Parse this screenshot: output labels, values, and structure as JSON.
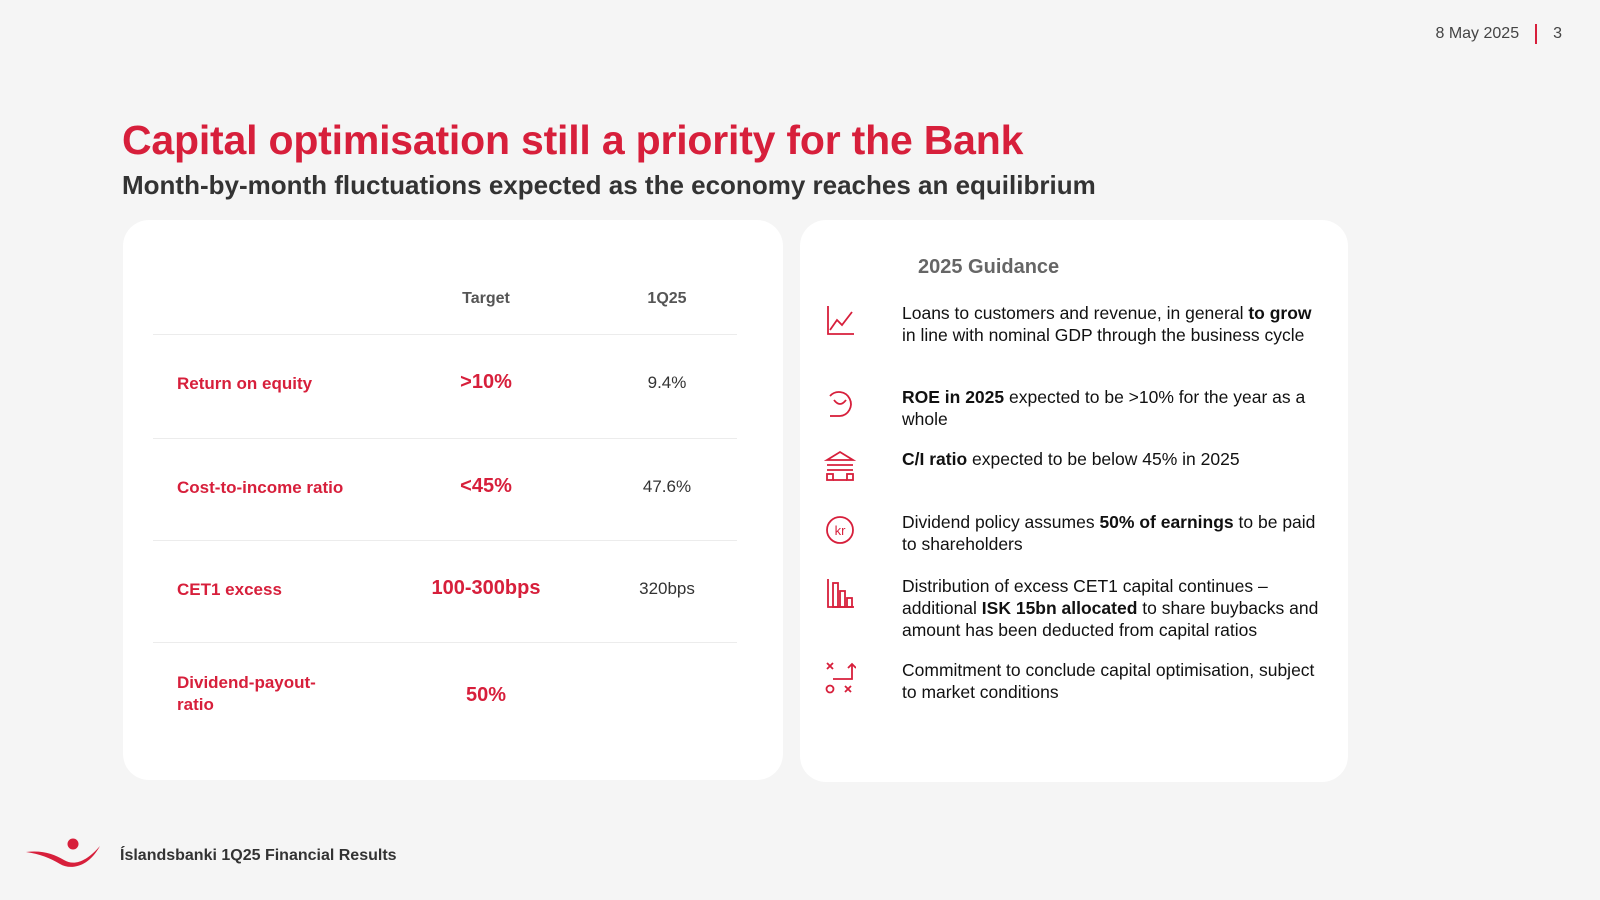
{
  "header": {
    "date": "8 May 2025",
    "page_number": "3"
  },
  "title": "Capital optimisation still a priority for the Bank",
  "subtitle": "Month-by-month fluctuations expected as the economy reaches an equilibrium",
  "targets_table": {
    "columns": [
      "Target",
      "1Q25"
    ],
    "rows": [
      {
        "label": "Return on equity",
        "target": ">10%",
        "q1_25": "9.4%"
      },
      {
        "label": "Cost-to-income ratio",
        "target": "<45%",
        "q1_25": "47.6%"
      },
      {
        "label": "CET1 excess",
        "target": "100-300bps",
        "q1_25": "320bps"
      },
      {
        "label": "Dividend-payout-ratio",
        "target": "50%",
        "q1_25": ""
      }
    ]
  },
  "guidance": {
    "title": "2025 Guidance",
    "items": [
      {
        "icon": "line-chart-icon",
        "parts": [
          "Loans to customers and revenue, in general ",
          "to grow",
          " in line with nominal GDP through the business cycle"
        ]
      },
      {
        "icon": "percent-gauge-icon",
        "parts": [
          "",
          "ROE in 2025",
          " expected to be >10% for the year as a whole"
        ]
      },
      {
        "icon": "bank-building-icon",
        "parts": [
          "",
          "C/I ratio",
          " expected to be below 45% in 2025"
        ]
      },
      {
        "icon": "krona-coin-icon",
        "parts": [
          "Dividend policy assumes ",
          "50% of earnings",
          " to be paid to shareholders"
        ]
      },
      {
        "icon": "bar-chart-decline-icon",
        "parts": [
          "Distribution of excess CET1 capital continues – additional ",
          "ISK 15bn allocated",
          " to share buybacks and amount has been deducted from capital ratios"
        ]
      },
      {
        "icon": "strategy-play-icon",
        "parts": [
          "Commitment to conclude capital optimisation, subject to market conditions",
          "",
          ""
        ]
      }
    ]
  },
  "footer": {
    "text": "Íslandsbanki 1Q25 Financial Results"
  },
  "colors": {
    "accent": "#d71f3b",
    "background": "#f5f5f5",
    "card": "#ffffff"
  }
}
